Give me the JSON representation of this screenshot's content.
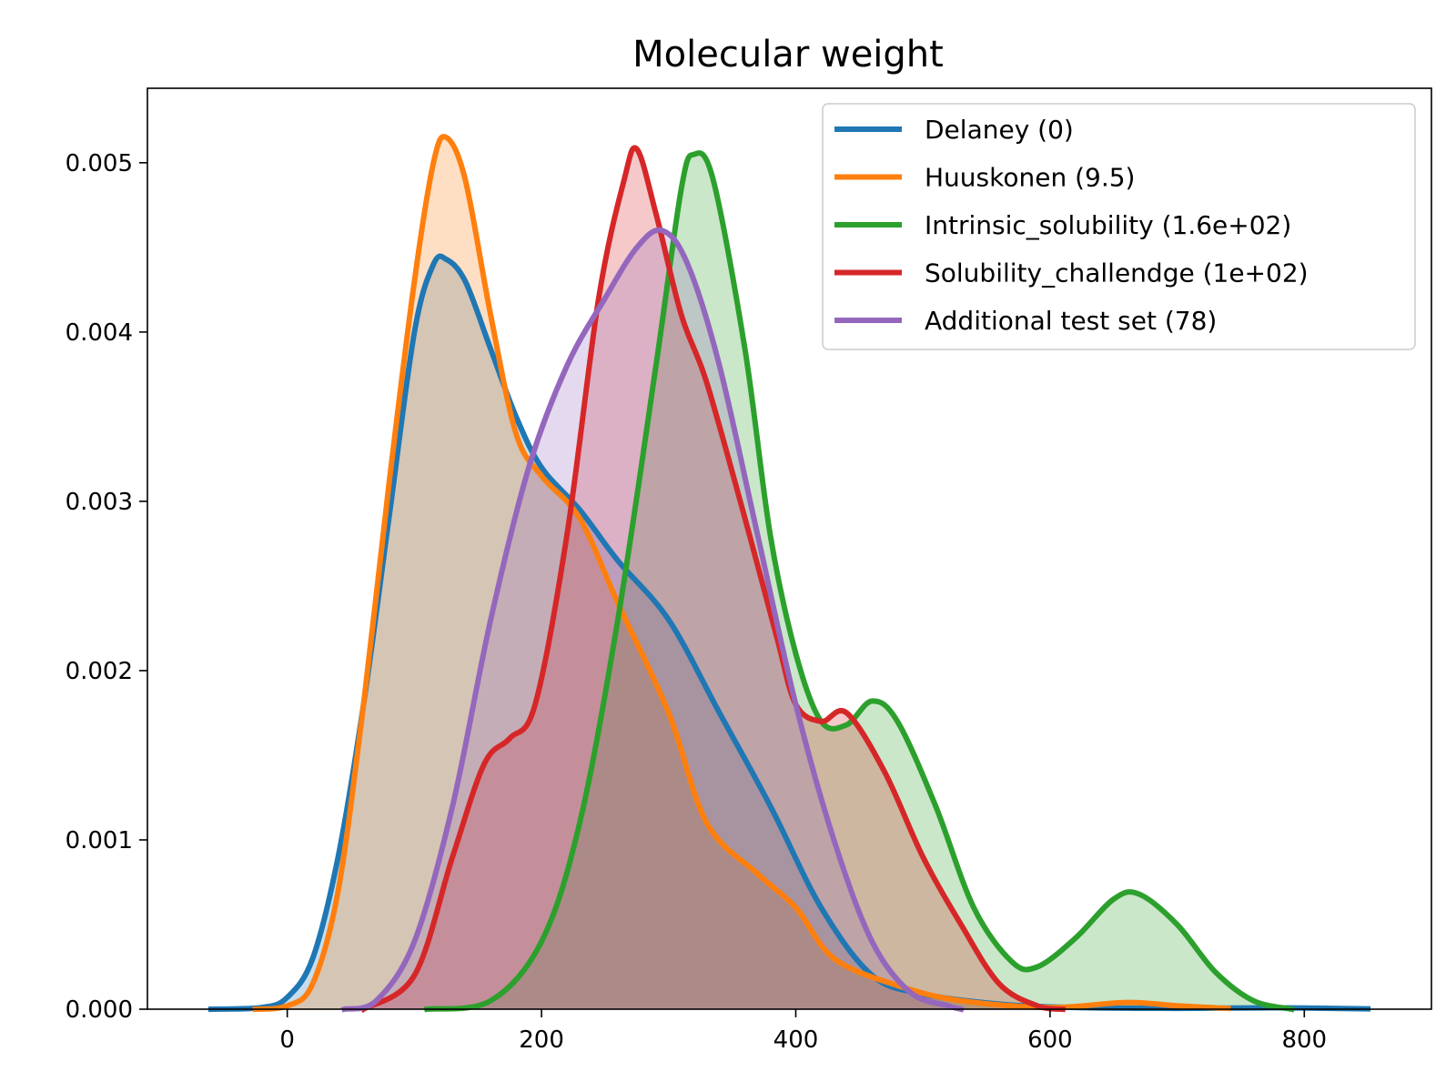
{
  "chart_data": {
    "type": "area",
    "title": "Molecular weight",
    "xlabel": "",
    "ylabel": "",
    "xlim": [
      -110,
      900
    ],
    "ylim": [
      0,
      0.00544
    ],
    "xticks": [
      0,
      200,
      400,
      600,
      800
    ],
    "xtick_labels": [
      "0",
      "200",
      "400",
      "600",
      "800"
    ],
    "yticks": [
      0,
      0.001,
      0.002,
      0.003,
      0.004,
      0.005
    ],
    "ytick_labels": [
      "0.000",
      "0.001",
      "0.002",
      "0.003",
      "0.004",
      "0.005"
    ],
    "grid": false,
    "legend_position": "top-right",
    "series": [
      {
        "name": "Delaney (0)",
        "color": "#1f77b4",
        "points": [
          [
            -60,
            0
          ],
          [
            -20,
            1e-05
          ],
          [
            0,
            7e-05
          ],
          [
            20,
            0.0003
          ],
          [
            40,
            0.0009
          ],
          [
            60,
            0.0018
          ],
          [
            80,
            0.0029
          ],
          [
            100,
            0.004
          ],
          [
            115,
            0.0044
          ],
          [
            125,
            0.00443
          ],
          [
            140,
            0.0043
          ],
          [
            160,
            0.0039
          ],
          [
            180,
            0.0035
          ],
          [
            200,
            0.0032
          ],
          [
            230,
            0.00295
          ],
          [
            260,
            0.00265
          ],
          [
            300,
            0.0023
          ],
          [
            340,
            0.00175
          ],
          [
            380,
            0.0012
          ],
          [
            420,
            0.0006
          ],
          [
            460,
            0.0002
          ],
          [
            500,
            9e-05
          ],
          [
            560,
            3e-05
          ],
          [
            620,
            1e-05
          ],
          [
            700,
            5e-06
          ],
          [
            780,
            8e-06
          ],
          [
            850,
            2e-06
          ]
        ]
      },
      {
        "name": "Huuskonen (9.5)",
        "color": "#ff7f0e",
        "points": [
          [
            -25,
            0
          ],
          [
            0,
            2e-05
          ],
          [
            20,
            0.00015
          ],
          [
            40,
            0.0007
          ],
          [
            60,
            0.0018
          ],
          [
            80,
            0.0031
          ],
          [
            100,
            0.0043
          ],
          [
            115,
            0.005
          ],
          [
            125,
            0.00515
          ],
          [
            140,
            0.0049
          ],
          [
            160,
            0.0041
          ],
          [
            180,
            0.0034
          ],
          [
            200,
            0.00315
          ],
          [
            230,
            0.0029
          ],
          [
            260,
            0.0024
          ],
          [
            300,
            0.00175
          ],
          [
            330,
            0.0011
          ],
          [
            370,
            0.0008
          ],
          [
            400,
            0.0006
          ],
          [
            430,
            0.0003
          ],
          [
            480,
            0.00014
          ],
          [
            530,
            5e-05
          ],
          [
            600,
            1e-05
          ],
          [
            660,
            4e-05
          ],
          [
            700,
            2e-05
          ],
          [
            740,
            5e-06
          ]
        ]
      },
      {
        "name": "Intrinsic_solubility (1.6e+02)",
        "color": "#2ca02c",
        "points": [
          [
            110,
            0
          ],
          [
            160,
            5e-05
          ],
          [
            200,
            0.0004
          ],
          [
            230,
            0.0011
          ],
          [
            260,
            0.0023
          ],
          [
            290,
            0.0038
          ],
          [
            310,
            0.00485
          ],
          [
            320,
            0.00505
          ],
          [
            335,
            0.0049
          ],
          [
            360,
            0.0039
          ],
          [
            380,
            0.0028
          ],
          [
            400,
            0.0021
          ],
          [
            420,
            0.0017
          ],
          [
            440,
            0.00168
          ],
          [
            460,
            0.00182
          ],
          [
            480,
            0.0017
          ],
          [
            510,
            0.0012
          ],
          [
            540,
            0.0006
          ],
          [
            570,
            0.00028
          ],
          [
            590,
            0.00025
          ],
          [
            620,
            0.00042
          ],
          [
            650,
            0.00065
          ],
          [
            670,
            0.00068
          ],
          [
            700,
            0.0005
          ],
          [
            730,
            0.00022
          ],
          [
            760,
            5e-05
          ],
          [
            790,
            0
          ]
        ]
      },
      {
        "name": "Solubility_challendge (1e+02)",
        "color": "#d62728",
        "points": [
          [
            60,
            0
          ],
          [
            100,
            0.0002
          ],
          [
            130,
            0.0009
          ],
          [
            155,
            0.00145
          ],
          [
            175,
            0.0016
          ],
          [
            195,
            0.0018
          ],
          [
            220,
            0.0028
          ],
          [
            245,
            0.0042
          ],
          [
            265,
            0.0049
          ],
          [
            275,
            0.00508
          ],
          [
            290,
            0.0047
          ],
          [
            310,
            0.0041
          ],
          [
            330,
            0.0037
          ],
          [
            360,
            0.0029
          ],
          [
            385,
            0.0022
          ],
          [
            400,
            0.0018
          ],
          [
            420,
            0.0017
          ],
          [
            440,
            0.00175
          ],
          [
            470,
            0.0014
          ],
          [
            500,
            0.0009
          ],
          [
            530,
            0.0005
          ],
          [
            560,
            0.00015
          ],
          [
            590,
            2e-05
          ],
          [
            610,
            0
          ]
        ]
      },
      {
        "name": "Additional test set (78)",
        "color": "#9467bd",
        "points": [
          [
            45,
            0
          ],
          [
            70,
            5e-05
          ],
          [
            100,
            0.0004
          ],
          [
            130,
            0.0012
          ],
          [
            160,
            0.0023
          ],
          [
            190,
            0.0032
          ],
          [
            220,
            0.0038
          ],
          [
            250,
            0.0042
          ],
          [
            275,
            0.0045
          ],
          [
            295,
            0.0046
          ],
          [
            315,
            0.0044
          ],
          [
            340,
            0.0038
          ],
          [
            370,
            0.0028
          ],
          [
            400,
            0.0018
          ],
          [
            430,
            0.001
          ],
          [
            460,
            0.0004
          ],
          [
            490,
            0.0001
          ],
          [
            520,
            2e-05
          ],
          [
            530,
            0
          ]
        ]
      }
    ]
  }
}
